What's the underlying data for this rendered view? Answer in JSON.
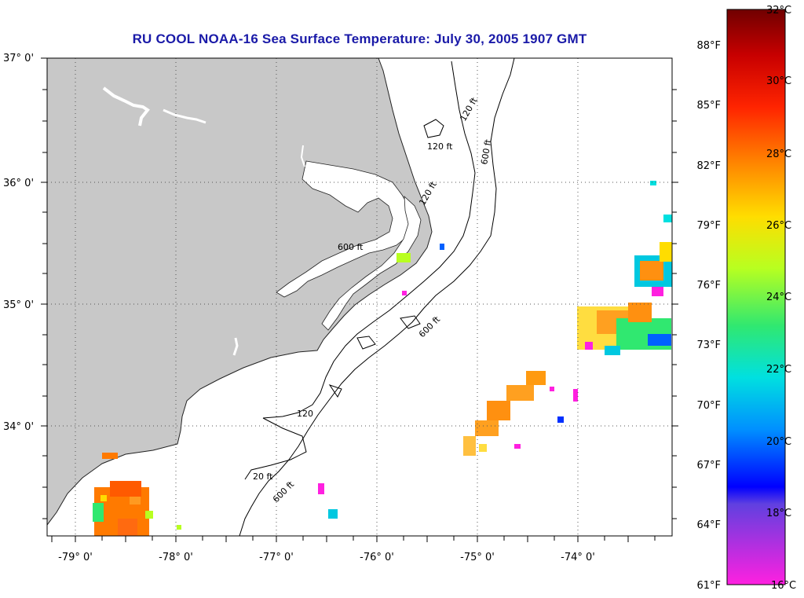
{
  "map": {
    "title": "RU COOL  NOAA-16  Sea Surface Temperature:  July 30, 2005 1907 GMT",
    "lat_labels": [
      "37° 0'",
      "36° 0'",
      "35° 0'",
      "34° 0'"
    ],
    "lon_labels": [
      "-79° 0'",
      "-78° 0'",
      "-77° 0'",
      "-76° 0'",
      "-75° 0'",
      "-74° 0'"
    ],
    "contour_labels": [
      "120 ft",
      "600 ft",
      "120 ft",
      "600 ft",
      "120 ft",
      "600 ft",
      "20 ft",
      "120",
      "600 ft"
    ],
    "land_color": "#c8c8c8",
    "ocean_color": "#ffffff"
  },
  "colorbar": {
    "fahrenheit_labels": [
      "88°F",
      "85°F",
      "82°F",
      "79°F",
      "76°F",
      "73°F",
      "70°F",
      "67°F",
      "64°F",
      "61°F"
    ],
    "celsius_labels": [
      "32°C",
      "30°C",
      "28°C",
      "26°C",
      "24°C",
      "22°C",
      "20°C",
      "18°C",
      "16°C"
    ],
    "colors": [
      "#7a0000",
      "#cc0000",
      "#ff2a00",
      "#ff8c00",
      "#ffdd00",
      "#b8ff1a",
      "#30e870",
      "#00e0e0",
      "#00a0ff",
      "#0030ff",
      "#0000ff",
      "#8040e0",
      "#ff20e0"
    ]
  }
}
